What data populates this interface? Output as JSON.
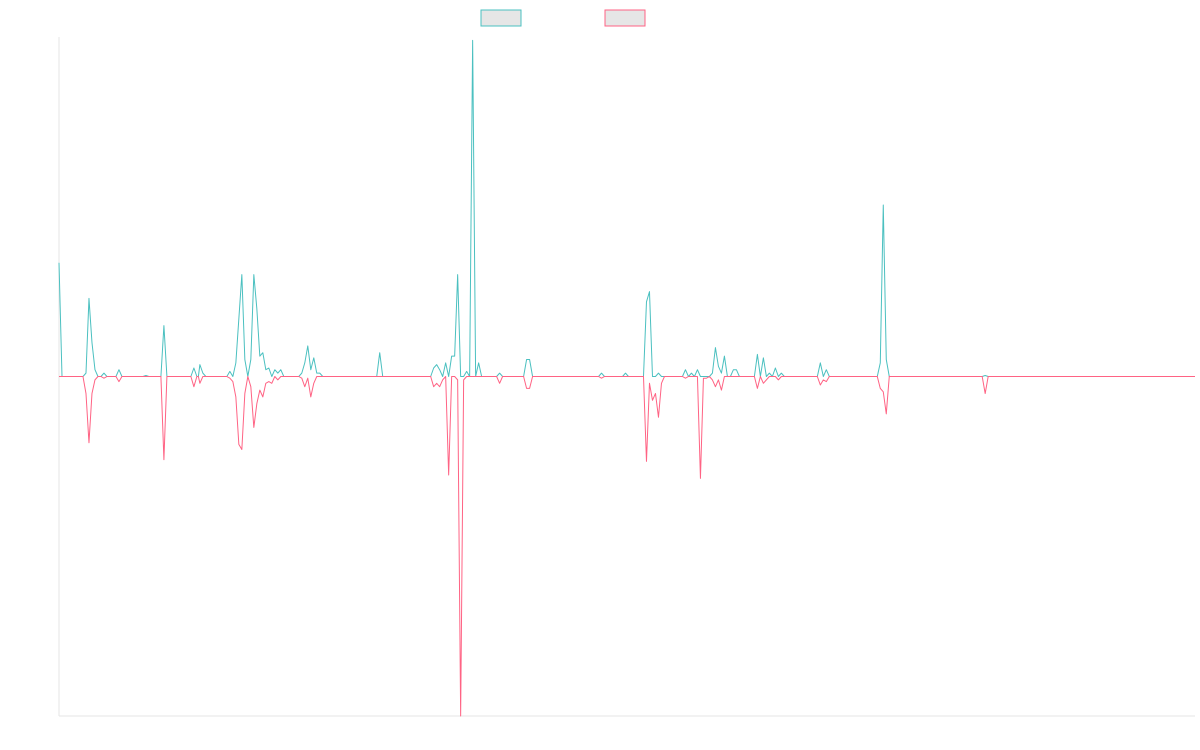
{
  "chart_data": {
    "type": "line",
    "title": "",
    "xlabel": "",
    "ylabel": "",
    "grid": false,
    "legend": {
      "placement": "top-center"
    },
    "x_count": 380,
    "ylim": [
      -1,
      1
    ],
    "series": [
      {
        "color": "#4bc0c0",
        "fill": "#e6e6e6",
        "points": [
          [
            0,
            0.335
          ],
          [
            1,
            0
          ],
          [
            8,
            0
          ],
          [
            9,
            0.01
          ],
          [
            10,
            0.23
          ],
          [
            11,
            0.1
          ],
          [
            12,
            0.02
          ],
          [
            13,
            0
          ],
          [
            14,
            0
          ],
          [
            15,
            0.01
          ],
          [
            16,
            0
          ],
          [
            19,
            0
          ],
          [
            20,
            0.02
          ],
          [
            21,
            0
          ],
          [
            28,
            0
          ],
          [
            29,
            0.003
          ],
          [
            30,
            0
          ],
          [
            34,
            0
          ],
          [
            35,
            0.15
          ],
          [
            36,
            0
          ],
          [
            44,
            0
          ],
          [
            45,
            0.025
          ],
          [
            46,
            0
          ],
          [
            46.5,
            0
          ],
          [
            47,
            0.035
          ],
          [
            48,
            0.01
          ],
          [
            49,
            0
          ],
          [
            56,
            0
          ],
          [
            57,
            0.015
          ],
          [
            58,
            0
          ],
          [
            59,
            0.04
          ],
          [
            60,
            0.17
          ],
          [
            61,
            0.3
          ],
          [
            62,
            0.05
          ],
          [
            63,
            0
          ],
          [
            64,
            0.05
          ],
          [
            65,
            0.3
          ],
          [
            66,
            0.2
          ],
          [
            67,
            0.06
          ],
          [
            68,
            0.07
          ],
          [
            69,
            0.02
          ],
          [
            70,
            0.025
          ],
          [
            71,
            0
          ],
          [
            72,
            0.02
          ],
          [
            73,
            0.01
          ],
          [
            74,
            0.02
          ],
          [
            75,
            0
          ],
          [
            80,
            0
          ],
          [
            81,
            0.01
          ],
          [
            82,
            0.04
          ],
          [
            83,
            0.09
          ],
          [
            84,
            0.02
          ],
          [
            85,
            0.055
          ],
          [
            86,
            0.01
          ],
          [
            87,
            0.01
          ],
          [
            88,
            0
          ],
          [
            106,
            0
          ],
          [
            107,
            0.07
          ],
          [
            108,
            0
          ],
          [
            124,
            0
          ],
          [
            125,
            0.025
          ],
          [
            126,
            0.035
          ],
          [
            127,
            0.02
          ],
          [
            128,
            0
          ],
          [
            129,
            0.04
          ],
          [
            130,
            0
          ],
          [
            131,
            0.06
          ],
          [
            132,
            0.06
          ],
          [
            133,
            0.3
          ],
          [
            134,
            0
          ],
          [
            135,
            0
          ],
          [
            136,
            0.015
          ],
          [
            137,
            0
          ],
          [
            138,
            0.99
          ],
          [
            139,
            0
          ],
          [
            140,
            0.04
          ],
          [
            141,
            0
          ],
          [
            146,
            0
          ],
          [
            147,
            0.01
          ],
          [
            148,
            0
          ],
          [
            155,
            0
          ],
          [
            156,
            0.05
          ],
          [
            157,
            0.05
          ],
          [
            158,
            0
          ],
          [
            180,
            0
          ],
          [
            181,
            0.01
          ],
          [
            182,
            0
          ],
          [
            188,
            0
          ],
          [
            189,
            0.01
          ],
          [
            190,
            0
          ],
          [
            195,
            0
          ],
          [
            196,
            0.22
          ],
          [
            197,
            0.25
          ],
          [
            198,
            0
          ],
          [
            199,
            0
          ],
          [
            200,
            0.01
          ],
          [
            201,
            0
          ],
          [
            202,
            0
          ],
          [
            203,
            0
          ],
          [
            208,
            0
          ],
          [
            209,
            0.02
          ],
          [
            210,
            0
          ],
          [
            211,
            0.01
          ],
          [
            212,
            0
          ],
          [
            213,
            0.02
          ],
          [
            214,
            0
          ],
          [
            217,
            0
          ],
          [
            218,
            0.01
          ],
          [
            219,
            0.085
          ],
          [
            220,
            0.03
          ],
          [
            221,
            0.01
          ],
          [
            222,
            0.06
          ],
          [
            223,
            0
          ],
          [
            224,
            0
          ],
          [
            225,
            0.02
          ],
          [
            226,
            0.02
          ],
          [
            227,
            0
          ],
          [
            232,
            0
          ],
          [
            233,
            0.065
          ],
          [
            234,
            0
          ],
          [
            235,
            0.055
          ],
          [
            236,
            0
          ],
          [
            237,
            0.01
          ],
          [
            238,
            0
          ],
          [
            239,
            0.025
          ],
          [
            240,
            0
          ],
          [
            241,
            0.01
          ],
          [
            242,
            0
          ],
          [
            253,
            0
          ],
          [
            254,
            0.04
          ],
          [
            255,
            0
          ],
          [
            256,
            0.02
          ],
          [
            257,
            0
          ],
          [
            273,
            0
          ],
          [
            274,
            0.04
          ],
          [
            275,
            0.505
          ],
          [
            276,
            0.05
          ],
          [
            277,
            0
          ],
          [
            278,
            0
          ],
          [
            279,
            0
          ],
          [
            280,
            0
          ],
          [
            308,
            0
          ],
          [
            309,
            0.003
          ],
          [
            310,
            0
          ],
          [
            379,
            0
          ]
        ]
      },
      {
        "color": "#ff6384",
        "fill": "#e6e6e6",
        "points": [
          [
            0,
            0
          ],
          [
            8,
            0
          ],
          [
            9,
            -0.05
          ],
          [
            10,
            -0.195
          ],
          [
            11,
            -0.05
          ],
          [
            12,
            -0.01
          ],
          [
            13,
            0
          ],
          [
            14,
            0
          ],
          [
            15,
            -0.005
          ],
          [
            16,
            0
          ],
          [
            19,
            0
          ],
          [
            20,
            -0.015
          ],
          [
            21,
            0
          ],
          [
            34,
            0
          ],
          [
            35,
            -0.245
          ],
          [
            36,
            0
          ],
          [
            44,
            0
          ],
          [
            45,
            -0.03
          ],
          [
            46,
            0
          ],
          [
            46.5,
            0
          ],
          [
            47,
            -0.02
          ],
          [
            48,
            0
          ],
          [
            56,
            0
          ],
          [
            57,
            -0.005
          ],
          [
            58,
            -0.015
          ],
          [
            59,
            -0.06
          ],
          [
            60,
            -0.2
          ],
          [
            61,
            -0.215
          ],
          [
            62,
            -0.05
          ],
          [
            63,
            0
          ],
          [
            64,
            -0.03
          ],
          [
            65,
            -0.15
          ],
          [
            66,
            -0.08
          ],
          [
            67,
            -0.04
          ],
          [
            68,
            -0.06
          ],
          [
            69,
            -0.02
          ],
          [
            70,
            -0.015
          ],
          [
            71,
            -0.02
          ],
          [
            72,
            0
          ],
          [
            73,
            -0.01
          ],
          [
            74,
            0
          ],
          [
            80,
            0
          ],
          [
            81,
            -0.005
          ],
          [
            82,
            -0.03
          ],
          [
            83,
            -0.005
          ],
          [
            84,
            -0.06
          ],
          [
            85,
            -0.02
          ],
          [
            86,
            0
          ],
          [
            124,
            0
          ],
          [
            125,
            -0.03
          ],
          [
            126,
            -0.02
          ],
          [
            127,
            -0.03
          ],
          [
            128,
            -0.01
          ],
          [
            129,
            0
          ],
          [
            130,
            -0.29
          ],
          [
            131,
            0
          ],
          [
            132,
            0
          ],
          [
            133,
            -0.01
          ],
          [
            134,
            -1.0
          ],
          [
            135,
            -0.01
          ],
          [
            136,
            0
          ],
          [
            146,
            0
          ],
          [
            147,
            -0.02
          ],
          [
            148,
            0
          ],
          [
            155,
            0
          ],
          [
            156,
            -0.035
          ],
          [
            157,
            -0.035
          ],
          [
            158,
            0
          ],
          [
            180,
            0
          ],
          [
            181,
            -0.005
          ],
          [
            182,
            0
          ],
          [
            195,
            0
          ],
          [
            196,
            -0.25
          ],
          [
            197,
            -0.02
          ],
          [
            198,
            -0.07
          ],
          [
            199,
            -0.05
          ],
          [
            200,
            -0.12
          ],
          [
            201,
            -0.02
          ],
          [
            202,
            0
          ],
          [
            208,
            0
          ],
          [
            209,
            -0.005
          ],
          [
            210,
            0
          ],
          [
            213,
            0
          ],
          [
            214,
            -0.3
          ],
          [
            215,
            -0.005
          ],
          [
            216,
            -0.005
          ],
          [
            217,
            0
          ],
          [
            218,
            -0.01
          ],
          [
            219,
            -0.03
          ],
          [
            220,
            -0.01
          ],
          [
            221,
            -0.04
          ],
          [
            222,
            0
          ],
          [
            232,
            0
          ],
          [
            233,
            -0.035
          ],
          [
            234,
            0
          ],
          [
            235,
            -0.02
          ],
          [
            236,
            -0.01
          ],
          [
            237,
            0
          ],
          [
            239,
            0
          ],
          [
            240,
            -0.01
          ],
          [
            241,
            0
          ],
          [
            253,
            0
          ],
          [
            254,
            -0.025
          ],
          [
            255,
            -0.01
          ],
          [
            256,
            -0.015
          ],
          [
            257,
            0
          ],
          [
            273,
            0
          ],
          [
            274,
            -0.035
          ],
          [
            275,
            -0.045
          ],
          [
            276,
            -0.11
          ],
          [
            277,
            0
          ],
          [
            308,
            0
          ],
          [
            309,
            -0.05
          ],
          [
            310,
            0
          ],
          [
            379,
            0
          ]
        ]
      }
    ]
  }
}
